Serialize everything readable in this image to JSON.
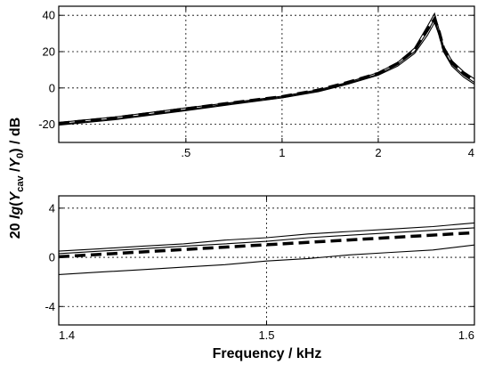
{
  "figure": {
    "ylabel": {
      "prefix": "20 ",
      "lg": "lg",
      "p1": "(",
      "Y1": "Y",
      "cav": "cav",
      "p2": " /",
      "Y2": "Y",
      "zero": "0",
      "p3": ")",
      "unit": " / dB"
    },
    "xlabel": "Frequency / kHz",
    "colors": {
      "measured": "#000000",
      "model": "#000000",
      "grid": "#000000"
    }
  },
  "chart_data": [
    {
      "type": "line",
      "xscale": "log",
      "xlim": [
        0.2,
        4
      ],
      "ylim": [
        -30,
        45
      ],
      "xticks": [
        0.5,
        1,
        2,
        4
      ],
      "xticklabels": [
        ".5",
        "1",
        "2",
        "4"
      ],
      "yticks": [
        -20,
        0,
        20,
        40
      ],
      "yticklabels": [
        "-20",
        "0",
        "20",
        "40"
      ],
      "grid": true,
      "series": [
        {
          "style": "solid",
          "x": [
            0.2,
            0.3,
            0.5,
            0.7,
            1,
            1.3,
            1.6,
            2,
            2.3,
            2.6,
            2.85,
            3.0,
            3.1,
            3.2,
            3.4,
            3.7,
            4.0
          ],
          "y": [
            -19,
            -16,
            -11,
            -8,
            -4.5,
            -1,
            3,
            8.5,
            14,
            22,
            34,
            41,
            32,
            23,
            15,
            9,
            5
          ]
        },
        {
          "style": "solid",
          "x": [
            0.2,
            0.3,
            0.5,
            0.7,
            1,
            1.3,
            1.6,
            2,
            2.3,
            2.6,
            2.85,
            3.0,
            3.1,
            3.2,
            3.4,
            3.7,
            4.0
          ],
          "y": [
            -20,
            -17,
            -12,
            -8.5,
            -5,
            -1.5,
            2.5,
            7.5,
            13,
            20,
            31,
            38,
            30,
            21,
            13,
            7,
            3
          ]
        },
        {
          "style": "solid",
          "x": [
            0.2,
            0.3,
            0.5,
            0.7,
            1,
            1.3,
            1.6,
            2,
            2.3,
            2.6,
            2.85,
            3.0,
            3.1,
            3.2,
            3.4,
            3.7,
            4.0
          ],
          "y": [
            -20.5,
            -17.5,
            -12.5,
            -9,
            -5.5,
            -2,
            2,
            7,
            12,
            19,
            29,
            36,
            29,
            20,
            12,
            6,
            2
          ]
        },
        {
          "style": "dashed",
          "x": [
            0.2,
            0.3,
            0.5,
            0.7,
            1,
            1.3,
            1.6,
            2,
            2.3,
            2.6,
            2.85,
            3.0,
            3.1,
            3.2,
            3.4,
            3.7,
            4.0
          ],
          "y": [
            -19.5,
            -16.5,
            -11.5,
            -8.2,
            -4.8,
            -1.2,
            3,
            8,
            13.5,
            21,
            32,
            38,
            31,
            22,
            14,
            8,
            4
          ]
        }
      ]
    },
    {
      "type": "line",
      "xlim": [
        1.4,
        1.6
      ],
      "ylim": [
        -5.5,
        5
      ],
      "xticks": [
        1.4,
        1.5,
        1.6
      ],
      "xticklabels": [
        "1.4",
        "1.5",
        "1.6"
      ],
      "yticks": [
        -4,
        0,
        4
      ],
      "yticklabels": [
        "-4",
        "0",
        "4"
      ],
      "grid": true,
      "series": [
        {
          "style": "solid",
          "x": [
            1.4,
            1.42,
            1.44,
            1.46,
            1.48,
            1.5,
            1.52,
            1.54,
            1.56,
            1.58,
            1.6
          ],
          "y": [
            0.5,
            0.7,
            0.9,
            1.1,
            1.4,
            1.6,
            1.9,
            2.1,
            2.3,
            2.5,
            2.8
          ]
        },
        {
          "style": "solid",
          "x": [
            1.4,
            1.42,
            1.44,
            1.46,
            1.48,
            1.5,
            1.52,
            1.54,
            1.56,
            1.58,
            1.6
          ],
          "y": [
            0.3,
            0.5,
            0.7,
            0.9,
            1.1,
            1.3,
            1.6,
            1.8,
            2.0,
            2.2,
            2.4
          ]
        },
        {
          "style": "solid",
          "x": [
            1.4,
            1.42,
            1.44,
            1.46,
            1.48,
            1.5,
            1.52,
            1.54,
            1.56,
            1.58,
            1.6
          ],
          "y": [
            -1.4,
            -1.2,
            -1.0,
            -0.8,
            -0.6,
            -0.3,
            -0.1,
            0.2,
            0.4,
            0.6,
            1.0
          ]
        },
        {
          "style": "dashed",
          "x": [
            1.4,
            1.6
          ],
          "y": [
            0.05,
            2.0
          ]
        }
      ]
    }
  ]
}
